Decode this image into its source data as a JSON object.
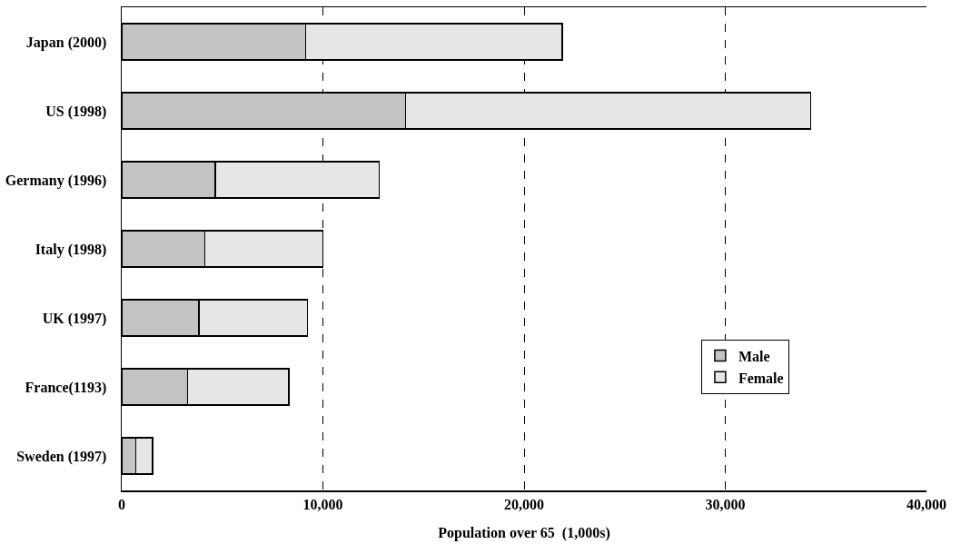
{
  "chart_data": {
    "type": "bar",
    "orientation": "horizontal",
    "stacked": true,
    "xlabel": "Population over 65  (1,000s)",
    "categories": [
      "Japan (2000)",
      "US (1998)",
      "Germany (1996)",
      "Italy (1998)",
      "UK (1997)",
      "France(1193)",
      "Sweden (1997)"
    ],
    "series": [
      {
        "name": "Male",
        "color": "#c4c4c4",
        "values": [
          9150,
          14100,
          4660,
          4130,
          3830,
          3280,
          690
        ]
      },
      {
        "name": "Female",
        "color": "#e6e6e6",
        "values": [
          12740,
          20150,
          8150,
          5870,
          5400,
          5030,
          840
        ]
      }
    ],
    "xlim": [
      0,
      40000
    ],
    "xticks": [
      {
        "value": 0,
        "label": "0"
      },
      {
        "value": 10000,
        "label": "10,000"
      },
      {
        "value": 20000,
        "label": "20,000"
      },
      {
        "value": 30000,
        "label": "30,000"
      },
      {
        "value": 40000,
        "label": "40,000"
      }
    ],
    "grid": "x",
    "legend": "bottom right"
  }
}
